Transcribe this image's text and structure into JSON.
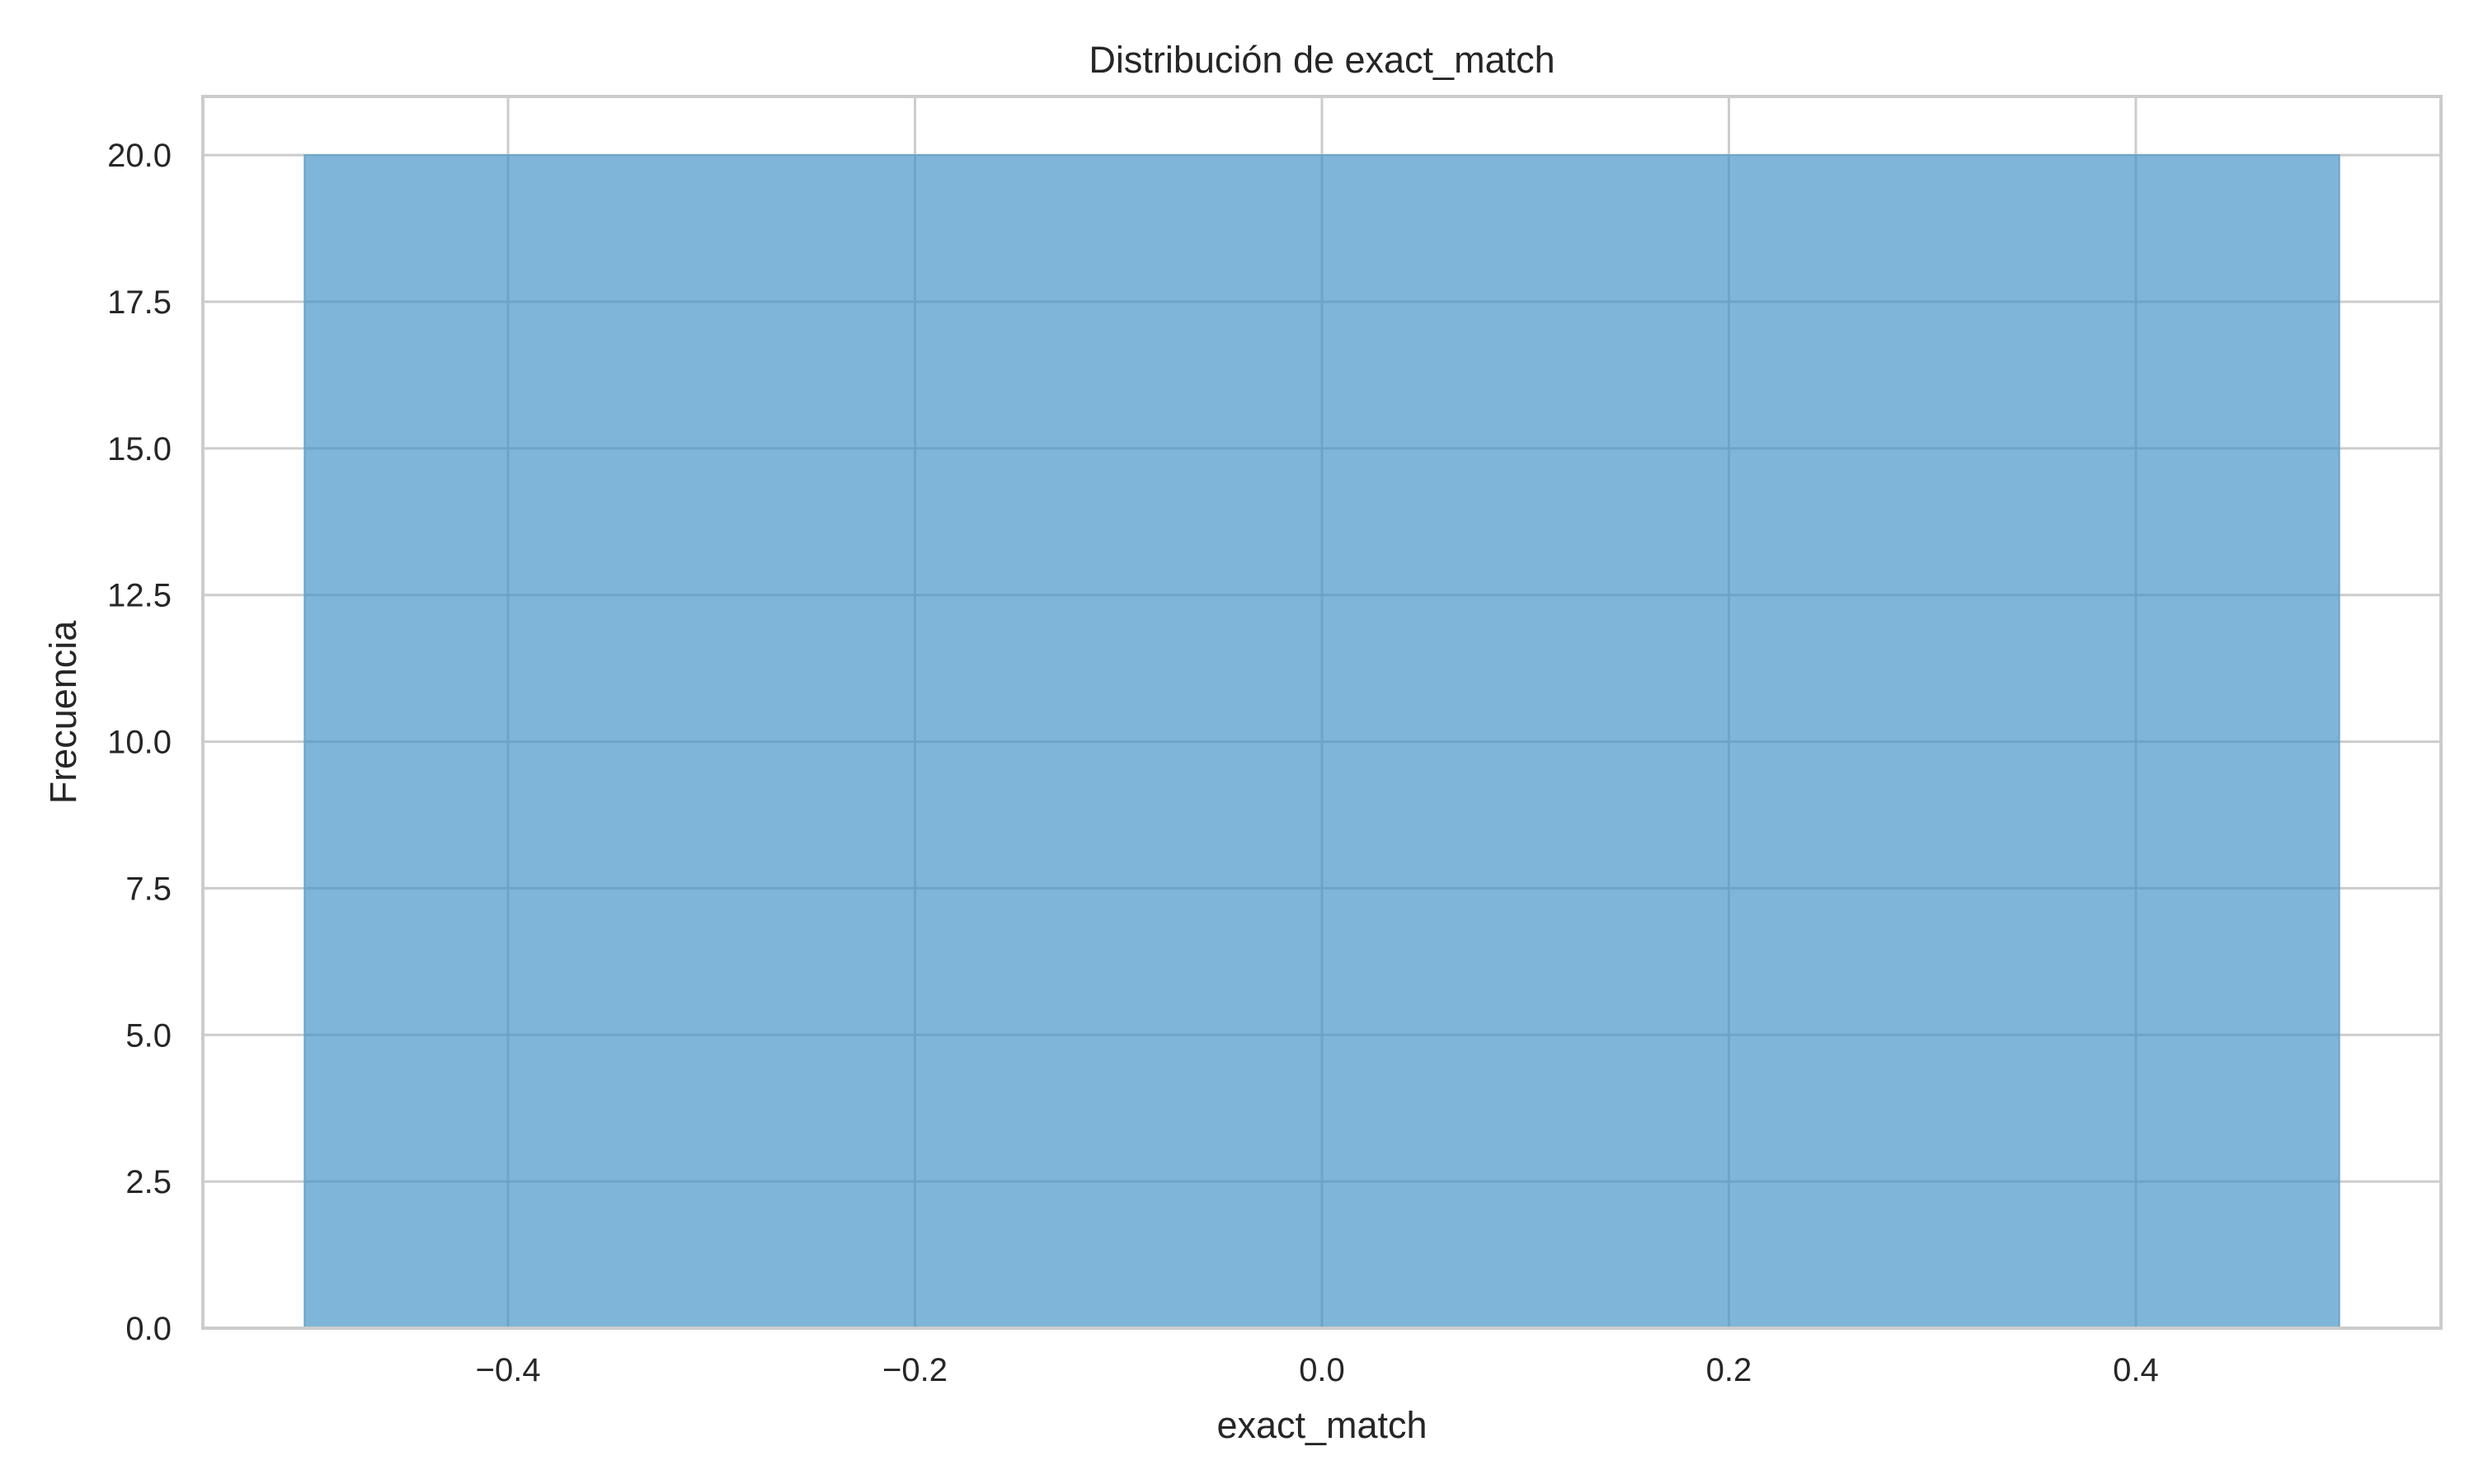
{
  "chart_data": {
    "type": "bar",
    "title": "Distribución de exact_match",
    "xlabel": "exact_match",
    "ylabel": "Frecuencia",
    "xlim": [
      -0.55,
      0.55
    ],
    "ylim": [
      0,
      21
    ],
    "xticks": [
      -0.4,
      -0.2,
      0.0,
      0.2,
      0.4
    ],
    "xtick_labels": [
      "−0.4",
      "−0.2",
      "0.0",
      "0.2",
      "0.4"
    ],
    "yticks": [
      0,
      2.5,
      5,
      7.5,
      10,
      12.5,
      15,
      17.5,
      20
    ],
    "ytick_labels": [
      "0.0",
      "2.5",
      "5.0",
      "7.5",
      "10.0",
      "12.5",
      "15.0",
      "17.5",
      "20.0"
    ],
    "bins": [
      {
        "x_start": -0.5,
        "x_end": 0.5,
        "value": 20
      }
    ],
    "grid": true,
    "colors": {
      "bar_fill": "#7fb5d8",
      "bar_edge": "#6aa4c8",
      "grid": "#cccccc",
      "spine": "#cccccc",
      "text": "#262626",
      "background": "#ffffff"
    }
  }
}
